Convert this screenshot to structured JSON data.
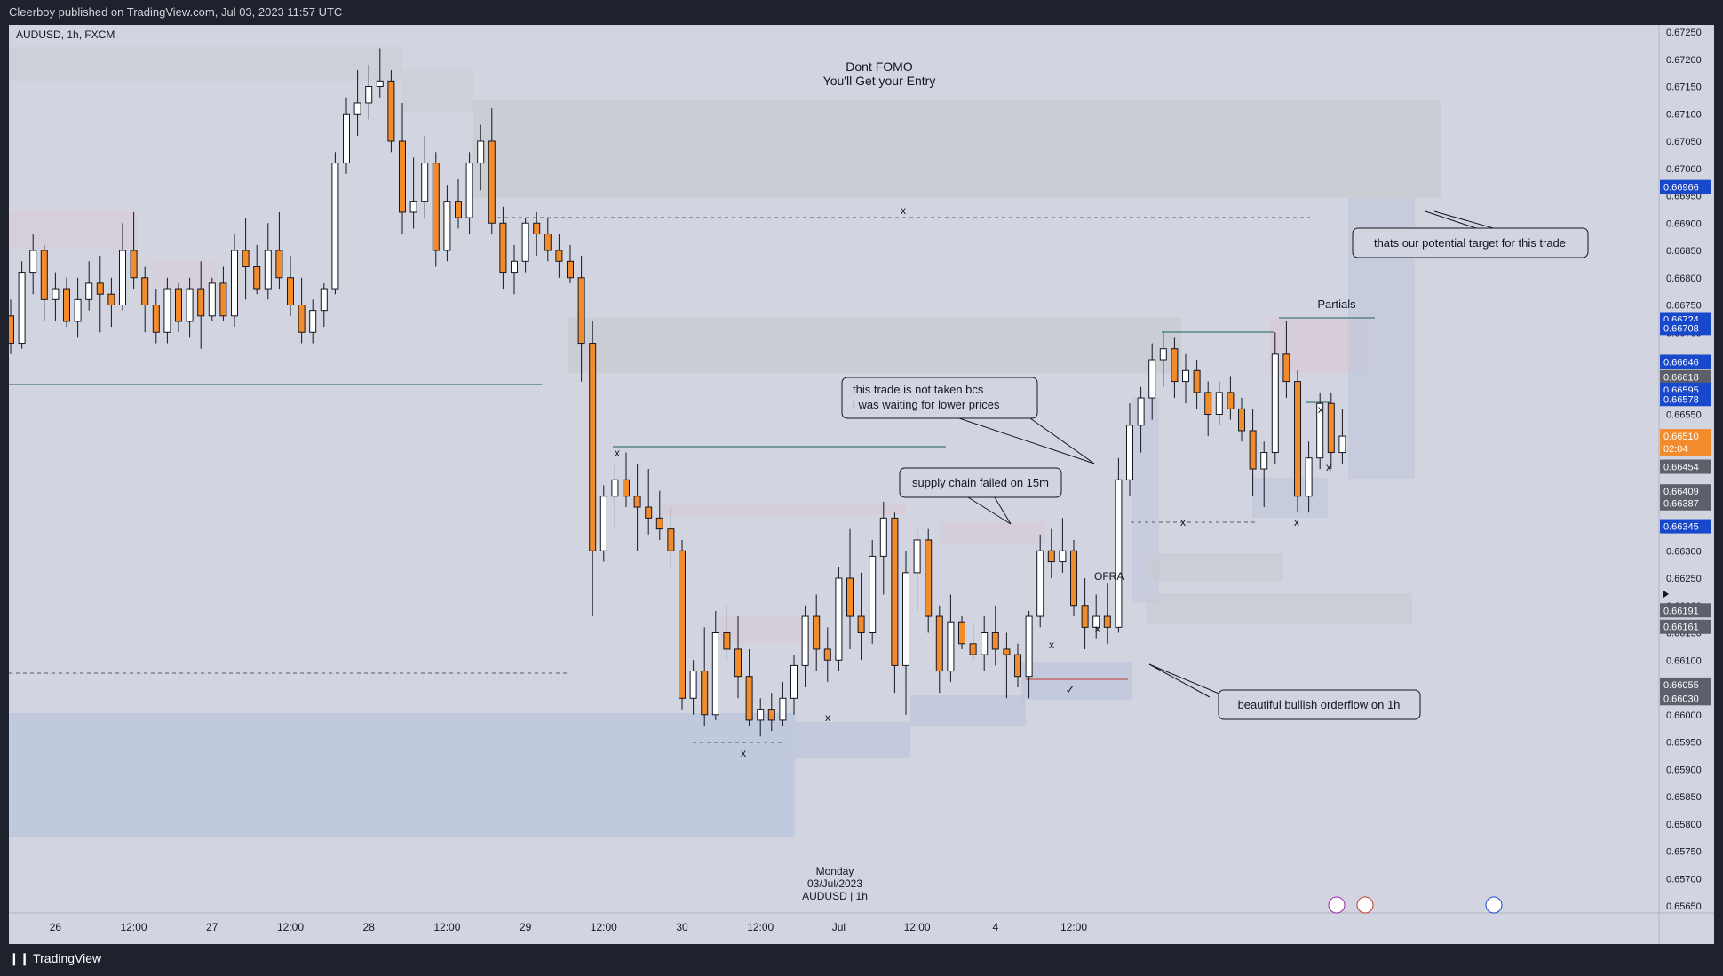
{
  "header": {
    "published": "Cleerboy published on TradingView.com, Jul 03, 2023 11:57 UTC"
  },
  "footer": {
    "brand": "TradingView"
  },
  "chart_data": {
    "type": "candlestick",
    "symbol": "AUDUSD, 1h, FXCM",
    "title_lines": [
      "Dont FOMO",
      "You'll Get your Entry"
    ],
    "watermark": [
      "Monday",
      "03/Jul/2023",
      "AUDUSD | 1h"
    ],
    "ylim": [
      0.6565,
      0.6725
    ],
    "y_ticks": [
      "0.67250",
      "0.67200",
      "0.67150",
      "0.67100",
      "0.67050",
      "0.67000",
      "0.66950",
      "0.66900",
      "0.66850",
      "0.66800",
      "0.66750",
      "0.66700",
      "0.66650",
      "0.66600",
      "0.66550",
      "0.66500",
      "0.66450",
      "0.66400",
      "0.66350",
      "0.66300",
      "0.66250",
      "0.66200",
      "0.66150",
      "0.66100",
      "0.66050",
      "0.66000",
      "0.65950",
      "0.65900",
      "0.65850",
      "0.65800",
      "0.65750",
      "0.65700",
      "0.65650"
    ],
    "x_ticks": [
      {
        "label": "26",
        "idx": 4
      },
      {
        "label": "12:00",
        "idx": 11
      },
      {
        "label": "27",
        "idx": 18
      },
      {
        "label": "12:00",
        "idx": 25
      },
      {
        "label": "28",
        "idx": 32
      },
      {
        "label": "12:00",
        "idx": 39
      },
      {
        "label": "29",
        "idx": 46
      },
      {
        "label": "12:00",
        "idx": 53
      },
      {
        "label": "30",
        "idx": 60
      },
      {
        "label": "12:00",
        "idx": 67
      },
      {
        "label": "Jul",
        "idx": 74
      },
      {
        "label": "12:00",
        "idx": 81
      },
      {
        "label": "4",
        "idx": 88
      },
      {
        "label": "12:00",
        "idx": 95
      }
    ],
    "price_labels": [
      {
        "value": "0.66966",
        "price": 0.66966,
        "color": "#1848cc"
      },
      {
        "value": "0.66724",
        "price": 0.66724,
        "color": "#1848cc"
      },
      {
        "value": "0.66708",
        "price": 0.66708,
        "color": "#1848cc"
      },
      {
        "value": "0.66646",
        "price": 0.66646,
        "color": "#1848cc"
      },
      {
        "value": "0.66618",
        "price": 0.66618,
        "color": "#5d606b"
      },
      {
        "value": "0.66595",
        "price": 0.66595,
        "color": "#1848cc"
      },
      {
        "value": "0.66578",
        "price": 0.66578,
        "color": "#1848cc"
      },
      {
        "value": "0.66510",
        "price": 0.6651,
        "color": "#f28b2c"
      },
      {
        "value": "02:04",
        "price": 0.66487,
        "color": "#f28b2c"
      },
      {
        "value": "0.66454",
        "price": 0.66454,
        "color": "#5d606b"
      },
      {
        "value": "0.66409",
        "price": 0.66409,
        "color": "#5d606b"
      },
      {
        "value": "0.66387",
        "price": 0.66387,
        "color": "#5d606b"
      },
      {
        "value": "0.66345",
        "price": 0.66345,
        "color": "#1848cc"
      },
      {
        "value": "0.66191",
        "price": 0.66191,
        "color": "#5d606b"
      },
      {
        "value": "0.66161",
        "price": 0.66161,
        "color": "#5d606b"
      },
      {
        "value": "0.66055",
        "price": 0.66055,
        "color": "#5d606b"
      },
      {
        "value": "0.66030",
        "price": 0.6603,
        "color": "#5d606b"
      }
    ],
    "candles": [
      [
        0.6673,
        0.6676,
        0.6666,
        0.6668
      ],
      [
        0.6668,
        0.6683,
        0.6667,
        0.6681
      ],
      [
        0.6681,
        0.6688,
        0.6677,
        0.6685
      ],
      [
        0.6685,
        0.6686,
        0.6672,
        0.6676
      ],
      [
        0.6676,
        0.6681,
        0.6672,
        0.6678
      ],
      [
        0.6678,
        0.668,
        0.6671,
        0.6672
      ],
      [
        0.6672,
        0.668,
        0.6669,
        0.6676
      ],
      [
        0.6676,
        0.6683,
        0.6674,
        0.6679
      ],
      [
        0.6679,
        0.6684,
        0.667,
        0.6677
      ],
      [
        0.6677,
        0.668,
        0.6671,
        0.6675
      ],
      [
        0.6675,
        0.669,
        0.6674,
        0.6685
      ],
      [
        0.6685,
        0.6692,
        0.6678,
        0.668
      ],
      [
        0.668,
        0.6682,
        0.667,
        0.6675
      ],
      [
        0.6675,
        0.6678,
        0.6668,
        0.667
      ],
      [
        0.667,
        0.668,
        0.6668,
        0.6678
      ],
      [
        0.6678,
        0.6679,
        0.667,
        0.6672
      ],
      [
        0.6672,
        0.668,
        0.6669,
        0.6678
      ],
      [
        0.6678,
        0.6683,
        0.6667,
        0.6673
      ],
      [
        0.6673,
        0.668,
        0.6672,
        0.6679
      ],
      [
        0.6679,
        0.6682,
        0.6672,
        0.6673
      ],
      [
        0.6673,
        0.6688,
        0.6671,
        0.6685
      ],
      [
        0.6685,
        0.6691,
        0.6676,
        0.6682
      ],
      [
        0.6682,
        0.6686,
        0.6677,
        0.6678
      ],
      [
        0.6678,
        0.669,
        0.6676,
        0.6685
      ],
      [
        0.6685,
        0.6692,
        0.6678,
        0.668
      ],
      [
        0.668,
        0.6684,
        0.6673,
        0.6675
      ],
      [
        0.6675,
        0.668,
        0.6668,
        0.667
      ],
      [
        0.667,
        0.6676,
        0.6668,
        0.6674
      ],
      [
        0.6674,
        0.6679,
        0.6671,
        0.6678
      ],
      [
        0.6678,
        0.6703,
        0.6677,
        0.6701
      ],
      [
        0.6701,
        0.6713,
        0.6699,
        0.671
      ],
      [
        0.671,
        0.6718,
        0.6706,
        0.6712
      ],
      [
        0.6712,
        0.6719,
        0.6709,
        0.6715
      ],
      [
        0.6715,
        0.6722,
        0.6713,
        0.6716
      ],
      [
        0.6716,
        0.6718,
        0.6703,
        0.6705
      ],
      [
        0.6705,
        0.6712,
        0.6688,
        0.6692
      ],
      [
        0.6692,
        0.6702,
        0.6689,
        0.6694
      ],
      [
        0.6694,
        0.6706,
        0.6691,
        0.6701
      ],
      [
        0.6701,
        0.6703,
        0.6682,
        0.6685
      ],
      [
        0.6685,
        0.6697,
        0.6683,
        0.6694
      ],
      [
        0.6694,
        0.6698,
        0.6689,
        0.6691
      ],
      [
        0.6691,
        0.6703,
        0.6688,
        0.6701
      ],
      [
        0.6701,
        0.6708,
        0.6696,
        0.6705
      ],
      [
        0.6705,
        0.6711,
        0.6688,
        0.669
      ],
      [
        0.669,
        0.6693,
        0.6678,
        0.6681
      ],
      [
        0.6681,
        0.6686,
        0.6677,
        0.6683
      ],
      [
        0.6683,
        0.6691,
        0.6681,
        0.669
      ],
      [
        0.669,
        0.6692,
        0.6684,
        0.6688
      ],
      [
        0.6688,
        0.6691,
        0.6683,
        0.6685
      ],
      [
        0.6685,
        0.6688,
        0.668,
        0.6683
      ],
      [
        0.6683,
        0.6686,
        0.6679,
        0.668
      ],
      [
        0.668,
        0.6684,
        0.6661,
        0.6668
      ],
      [
        0.6668,
        0.6672,
        0.6618,
        0.663
      ],
      [
        0.663,
        0.6642,
        0.6628,
        0.664
      ],
      [
        0.664,
        0.6646,
        0.6634,
        0.6643
      ],
      [
        0.6643,
        0.6648,
        0.6638,
        0.664
      ],
      [
        0.664,
        0.6646,
        0.663,
        0.6638
      ],
      [
        0.6638,
        0.6645,
        0.6633,
        0.6636
      ],
      [
        0.6636,
        0.6641,
        0.6632,
        0.6634
      ],
      [
        0.6634,
        0.6638,
        0.6627,
        0.663
      ],
      [
        0.663,
        0.6632,
        0.6601,
        0.6603
      ],
      [
        0.6603,
        0.661,
        0.66,
        0.6608
      ],
      [
        0.6608,
        0.6616,
        0.6598,
        0.66
      ],
      [
        0.66,
        0.6619,
        0.6599,
        0.6615
      ]
    ],
    "candles2": [
      [
        0.6615,
        0.662,
        0.661,
        0.6612
      ],
      [
        0.6612,
        0.6618,
        0.6603,
        0.6607
      ],
      [
        0.6607,
        0.6612,
        0.6598,
        0.6599
      ],
      [
        0.6599,
        0.6603,
        0.6596,
        0.6601
      ],
      [
        0.6601,
        0.6604,
        0.6597,
        0.6599
      ],
      [
        0.6599,
        0.6606,
        0.6598,
        0.6603
      ],
      [
        0.6603,
        0.6611,
        0.66,
        0.6609
      ],
      [
        0.6609,
        0.662,
        0.6605,
        0.6618
      ],
      [
        0.6618,
        0.6622,
        0.6608,
        0.6612
      ],
      [
        0.6612,
        0.6616,
        0.6606,
        0.661
      ],
      [
        0.661,
        0.6627,
        0.6608,
        0.6625
      ],
      [
        0.6625,
        0.6634,
        0.6612,
        0.6618
      ],
      [
        0.6618,
        0.6626,
        0.661,
        0.6615
      ],
      [
        0.6615,
        0.6632,
        0.6613,
        0.6629
      ],
      [
        0.6629,
        0.6639,
        0.6622,
        0.6636
      ],
      [
        0.6636,
        0.6637,
        0.6604,
        0.6609
      ],
      [
        0.6609,
        0.663,
        0.66,
        0.6626
      ],
      [
        0.6626,
        0.6634,
        0.6619,
        0.6632
      ],
      [
        0.6632,
        0.6634,
        0.6615,
        0.6618
      ],
      [
        0.6618,
        0.662,
        0.6604,
        0.6608
      ],
      [
        0.6608,
        0.6622,
        0.6606,
        0.6617
      ],
      [
        0.6617,
        0.6618,
        0.6612,
        0.6613
      ],
      [
        0.6613,
        0.6617,
        0.661,
        0.6611
      ],
      [
        0.6611,
        0.6618,
        0.6608,
        0.6615
      ],
      [
        0.6615,
        0.662,
        0.6609,
        0.6612
      ],
      [
        0.6612,
        0.6615,
        0.6603,
        0.6611
      ],
      [
        0.6611,
        0.6613,
        0.6605,
        0.6607
      ],
      [
        0.6607,
        0.6619,
        0.6603,
        0.6618
      ],
      [
        0.6618,
        0.6633,
        0.6616,
        0.663
      ],
      [
        0.663,
        0.6634,
        0.6625,
        0.6628
      ],
      [
        0.6628,
        0.6636,
        0.6626,
        0.663
      ],
      [
        0.663,
        0.6632,
        0.6618,
        0.662
      ],
      [
        0.662,
        0.6625,
        0.6612,
        0.6616
      ],
      [
        0.6616,
        0.6622,
        0.6614,
        0.6618
      ],
      [
        0.6618,
        0.6624,
        0.6613,
        0.6616
      ],
      [
        0.6616,
        0.6647,
        0.6615,
        0.6643
      ],
      [
        0.6643,
        0.6657,
        0.664,
        0.6653
      ],
      [
        0.6653,
        0.666,
        0.6648,
        0.6658
      ],
      [
        0.6658,
        0.6668,
        0.6654,
        0.6665
      ],
      [
        0.6665,
        0.667,
        0.666,
        0.6667
      ],
      [
        0.6667,
        0.6669,
        0.6658,
        0.6661
      ],
      [
        0.6661,
        0.6666,
        0.6657,
        0.6663
      ],
      [
        0.6663,
        0.6665,
        0.6656,
        0.6659
      ],
      [
        0.6659,
        0.6661,
        0.6651,
        0.6655
      ],
      [
        0.6655,
        0.6661,
        0.6653,
        0.6659
      ],
      [
        0.6659,
        0.6662,
        0.6654,
        0.6656
      ],
      [
        0.6656,
        0.6658,
        0.665,
        0.6652
      ],
      [
        0.6652,
        0.6656,
        0.664,
        0.6645
      ],
      [
        0.6645,
        0.665,
        0.6638,
        0.6648
      ],
      [
        0.6648,
        0.667,
        0.6646,
        0.6666
      ],
      [
        0.6666,
        0.6672,
        0.6658,
        0.6661
      ],
      [
        0.6661,
        0.6663,
        0.6637,
        0.664
      ],
      [
        0.664,
        0.665,
        0.6637,
        0.6647
      ],
      [
        0.6647,
        0.6659,
        0.6645,
        0.6657
      ],
      [
        0.6657,
        0.6659,
        0.6645,
        0.6648
      ],
      [
        0.6648,
        0.6656,
        0.6646,
        0.6651
      ]
    ],
    "annotations": [
      {
        "text": "this trade is not taken bcs\ni was waiting for lower prices"
      },
      {
        "text": "supply chain failed on 15m"
      },
      {
        "text": "thats our potential target for this trade"
      },
      {
        "text": "beautiful bullish orderflow on 1h"
      },
      {
        "text": "Partials"
      },
      {
        "text": "OFRA"
      },
      {
        "text": "x"
      },
      {
        "text": "✓"
      }
    ],
    "colors": {
      "bull": "#ffffff",
      "bear": "#f28b2c",
      "wick": "#131722",
      "background": "#d2d5e0",
      "axis_bg": "#d2d5e0"
    }
  }
}
